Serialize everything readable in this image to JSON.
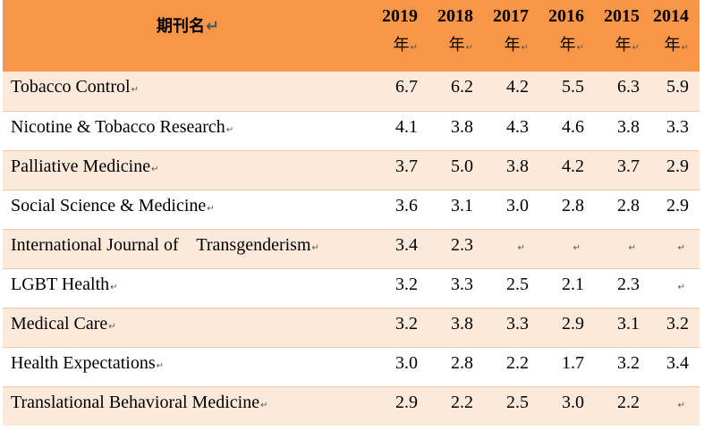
{
  "table": {
    "header": {
      "journal_label": "期刊名",
      "year_suffix": "年",
      "years": [
        "2019",
        "2018",
        "2017",
        "2016",
        "2015",
        "2014"
      ]
    },
    "rows": [
      {
        "name": "Tobacco Control",
        "values": [
          "6.7",
          "6.2",
          "4.2",
          "5.5",
          "6.3",
          "5.9"
        ]
      },
      {
        "name": "Nicotine & Tobacco Research",
        "values": [
          "4.1",
          "3.8",
          "4.3",
          "4.6",
          "3.8",
          "3.3"
        ]
      },
      {
        "name": "Palliative Medicine",
        "values": [
          "3.7",
          "5.0",
          "3.8",
          "4.2",
          "3.7",
          "2.9"
        ]
      },
      {
        "name": "Social Science & Medicine",
        "values": [
          "3.6",
          "3.1",
          "3.0",
          "2.8",
          "2.8",
          "2.9"
        ]
      },
      {
        "name": "International Journal of    Transgenderism",
        "values": [
          "3.4",
          "2.3",
          "",
          "",
          "",
          ""
        ]
      },
      {
        "name": "LGBT Health",
        "values": [
          "3.2",
          "3.3",
          "2.5",
          "2.1",
          "2.3",
          ""
        ]
      },
      {
        "name": "Medical Care",
        "values": [
          "3.2",
          "3.8",
          "3.3",
          "2.9",
          "3.1",
          "3.2"
        ]
      },
      {
        "name": "Health Expectations",
        "values": [
          "3.0",
          "2.8",
          "2.2",
          "1.7",
          "3.2",
          "3.4"
        ]
      },
      {
        "name": "Translational Behavioral Medicine",
        "values": [
          "2.9",
          "2.2",
          "2.5",
          "3.0",
          "2.2",
          ""
        ]
      }
    ]
  },
  "colors": {
    "header_bg": "#f79646",
    "band_bg": "#fde9d9"
  }
}
